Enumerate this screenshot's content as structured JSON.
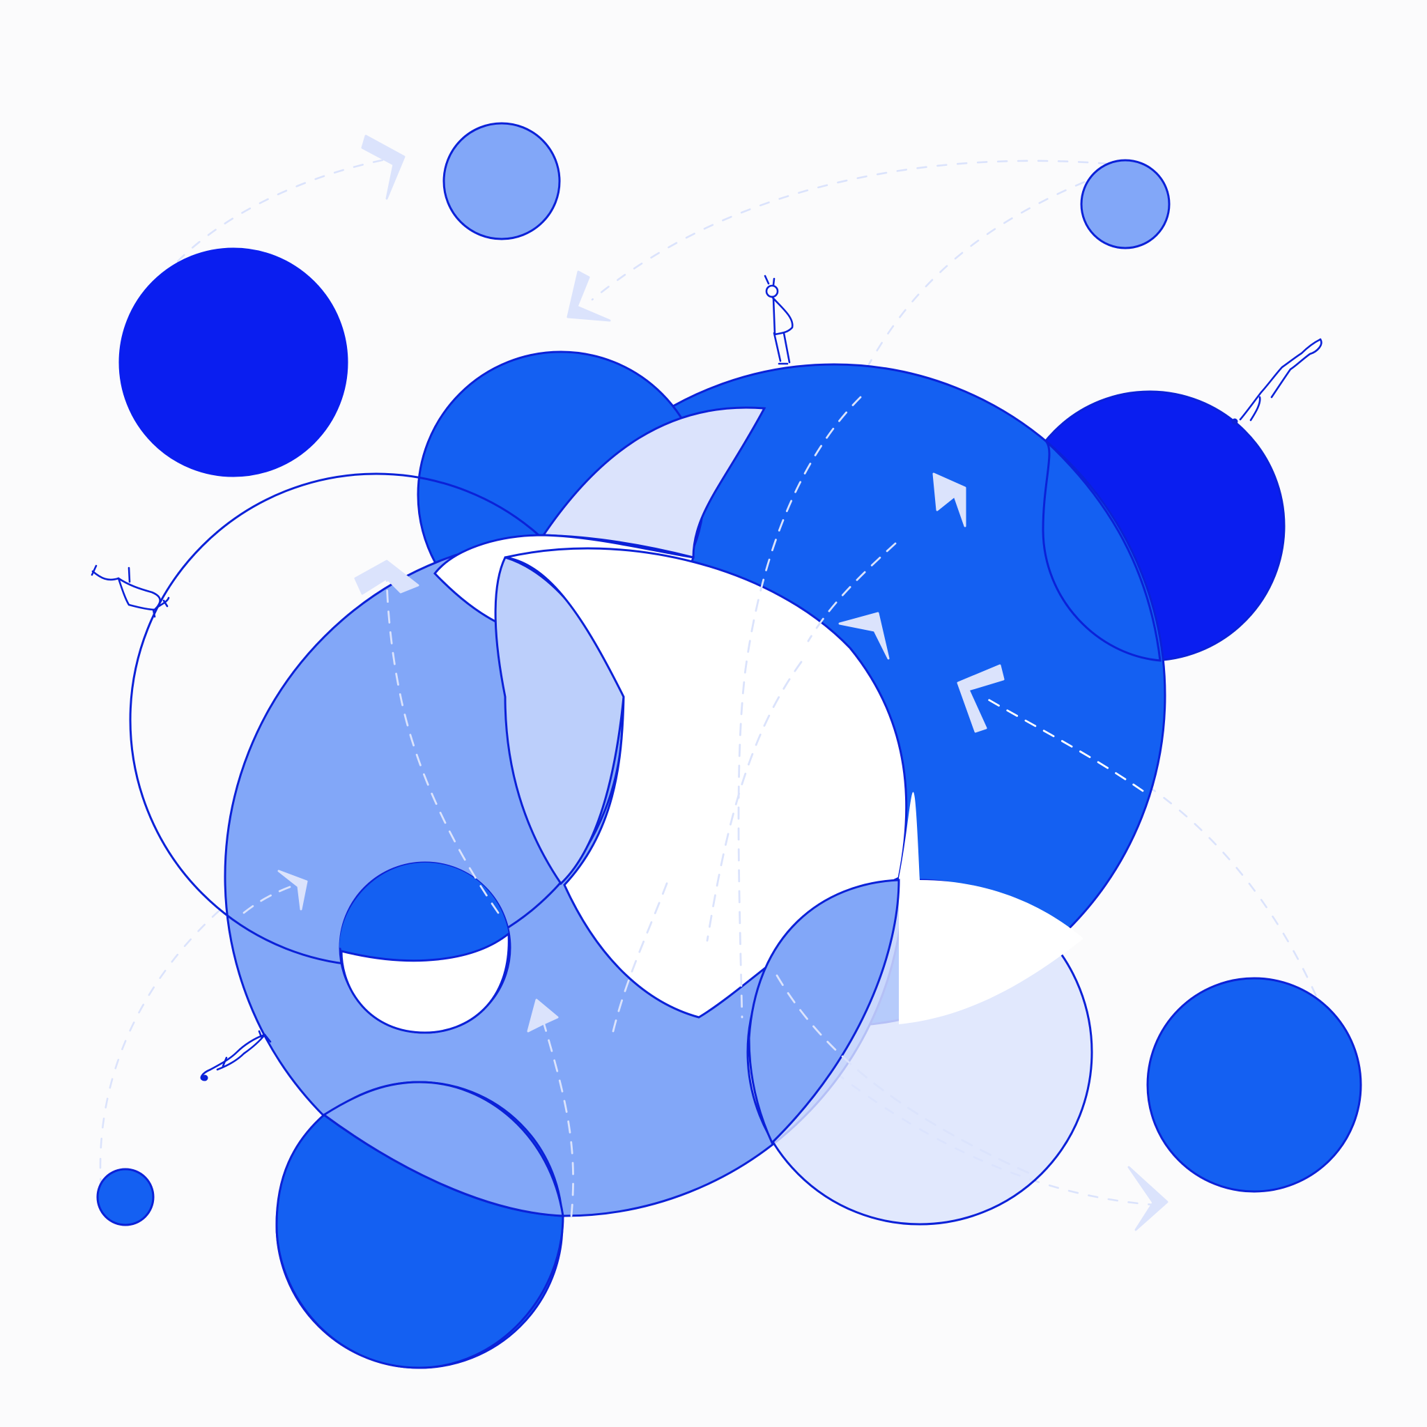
{
  "illustration": {
    "subject": "",
    "colors": {
      "background": "#fbfbfc",
      "royal_blue": "#0a1ef0",
      "bright_blue": "#1460f2",
      "medium_blue": "#82a7f8",
      "light_blue": "#bccffb",
      "pale_blue": "#dbe3fc",
      "outline_blue": "#0b21d8",
      "white": "#ffffff"
    },
    "circle_styles": [
      "royal_blue",
      "bright_blue",
      "medium_blue",
      "light_blue",
      "pale_blue",
      "white_outline"
    ],
    "figures": [
      "person-standing-icon",
      "person-walking-icon",
      "person-leaning-icon",
      "person-crawling-icon"
    ],
    "arrows": [
      "curved-dashed-arrow-icon",
      "sketched-arrowhead-icon"
    ]
  }
}
